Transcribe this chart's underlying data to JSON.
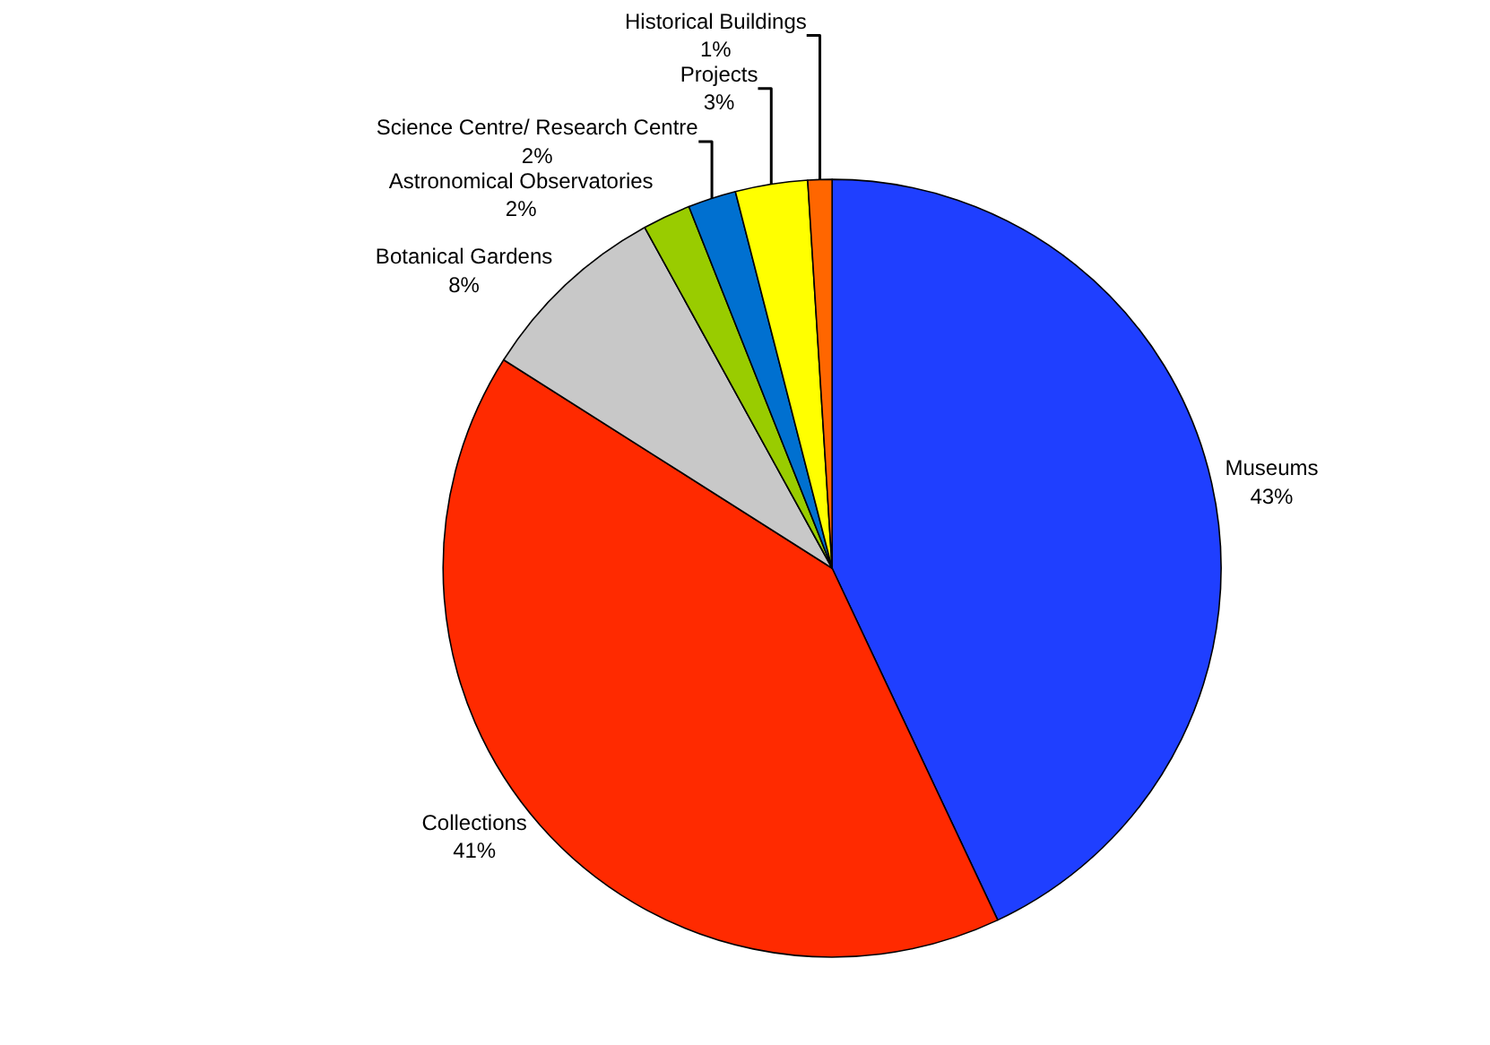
{
  "chart_data": {
    "type": "pie",
    "categories": [
      "Museums",
      "Collections",
      "Botanical Gardens",
      "Astronomical Observatories",
      "Science Centre/ Research Centre",
      "Projects",
      "Historical Buildings"
    ],
    "values": [
      43,
      41,
      8,
      2,
      2,
      3,
      1
    ],
    "value_labels": [
      "43%",
      "41%",
      "8%",
      "2%",
      "2%",
      "3%",
      "1%"
    ],
    "colors": [
      "#1f3fff",
      "#ff2a00",
      "#c8c8c8",
      "#99cc00",
      "#0070d0",
      "#ffff00",
      "#ff6600"
    ],
    "legend": false
  }
}
